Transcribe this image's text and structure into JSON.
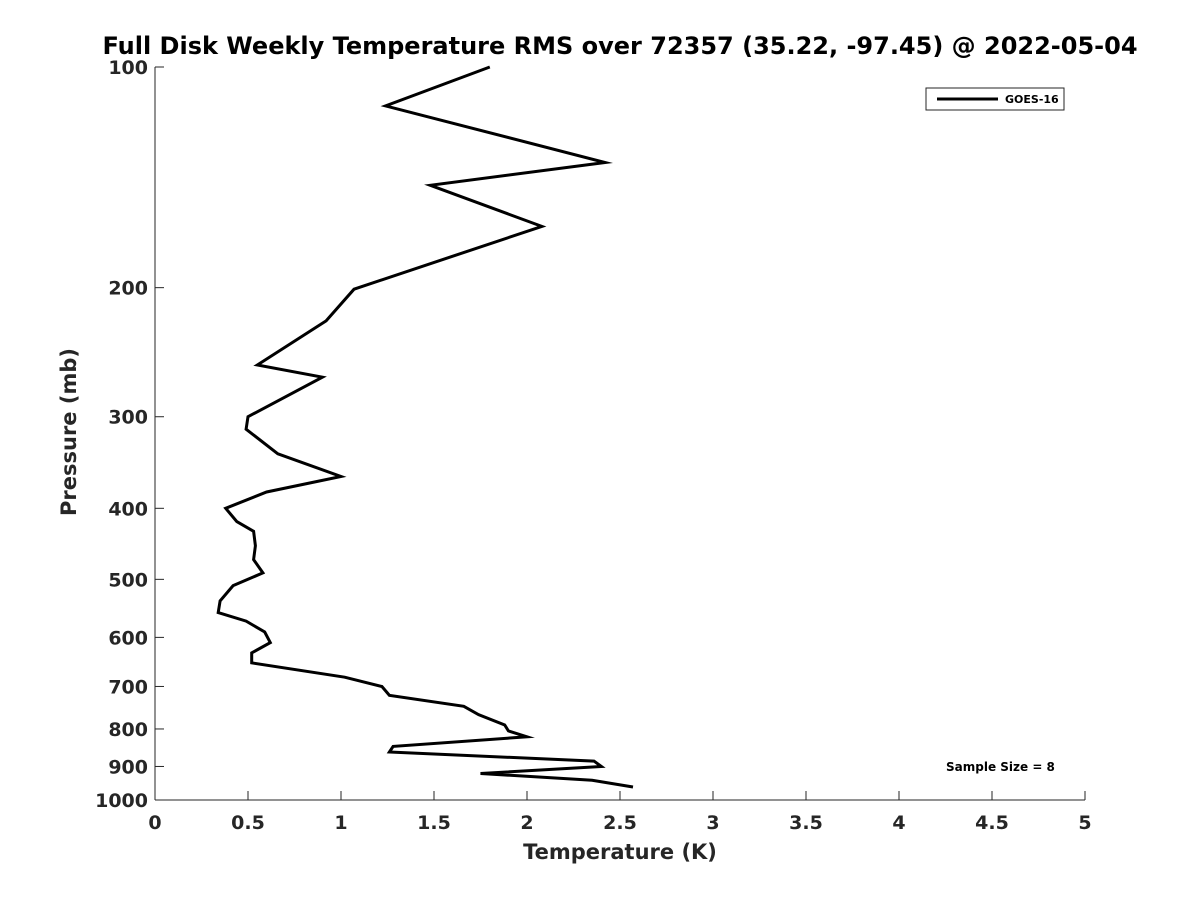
{
  "chart_data": {
    "type": "line",
    "title": "Full Disk Weekly Temperature RMS over 72357 (35.22, -97.45) @ 2022-05-04",
    "xlabel": "Temperature (K)",
    "ylabel": "Pressure (mb)",
    "xlim": [
      0,
      5
    ],
    "ylim": [
      100,
      1000
    ],
    "yscale": "log",
    "y_reversed": true,
    "x_ticks": [
      0,
      0.5,
      1,
      1.5,
      2,
      2.5,
      3,
      3.5,
      4,
      4.5,
      5
    ],
    "x_tick_labels": [
      "0",
      "0.5",
      "1",
      "1.5",
      "2",
      "2.5",
      "3",
      "3.5",
      "4",
      "4.5",
      "5"
    ],
    "y_ticks": [
      100,
      200,
      300,
      400,
      500,
      600,
      700,
      800,
      900,
      1000
    ],
    "y_tick_labels": [
      "100",
      "200",
      "300",
      "400",
      "500",
      "600",
      "700",
      "800",
      "900",
      "1000"
    ],
    "grid": false,
    "legend_position": "top-right",
    "series": [
      {
        "name": "GOES-16",
        "color": "#000000",
        "x": [
          1.8,
          1.24,
          2.42,
          1.48,
          2.08,
          1.07,
          0.92,
          0.55,
          0.9,
          0.5,
          0.49,
          0.66,
          1.0,
          0.6,
          0.38,
          0.44,
          0.53,
          0.54,
          0.53,
          0.58,
          0.42,
          0.35,
          0.34,
          0.49,
          0.59,
          0.62,
          0.52,
          0.52,
          1.02,
          1.22,
          1.26,
          1.66,
          1.74,
          1.88,
          1.9,
          2.0,
          1.28,
          1.26,
          2.36,
          2.4,
          1.75,
          2.35,
          2.57
        ],
        "y": [
          100,
          113,
          135,
          145,
          165,
          201,
          222,
          255,
          265,
          300,
          312,
          337,
          362,
          380,
          400,
          417,
          430,
          450,
          470,
          490,
          510,
          535,
          555,
          570,
          590,
          610,
          630,
          650,
          680,
          700,
          720,
          745,
          765,
          790,
          805,
          820,
          845,
          860,
          885,
          900,
          920,
          940,
          960
        ]
      }
    ],
    "annotations": [
      "Sample Size = 8"
    ]
  }
}
